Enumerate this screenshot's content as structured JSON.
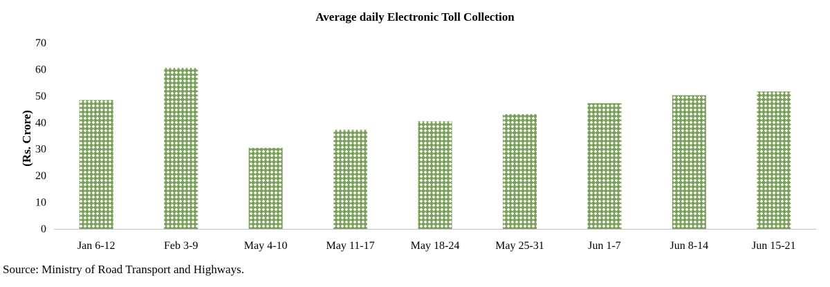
{
  "chart_data": {
    "type": "bar",
    "title": "Average daily Electronic Toll Collection",
    "xlabel": "",
    "ylabel": "(Rs. Crore)",
    "categories": [
      "Jan 6-12",
      "Feb 3-9",
      "May 4-10",
      "May 11-17",
      "May 18-24",
      "May 25-31",
      "Jun 1-7",
      "Jun 8-14",
      "Jun 15-21"
    ],
    "values": [
      48.5,
      60.6,
      30.5,
      37.3,
      40.5,
      43.2,
      47.3,
      50.3,
      51.7
    ],
    "ylim": [
      0,
      70
    ],
    "yticks": [
      "0",
      "10",
      "20",
      "30",
      "40",
      "50",
      "60",
      "70"
    ],
    "grid": false,
    "bar_color": "#7ba05b",
    "bar_pattern": "hatched-diamond"
  },
  "footer": {
    "source": "Source: Ministry of Road Transport and Highways."
  }
}
